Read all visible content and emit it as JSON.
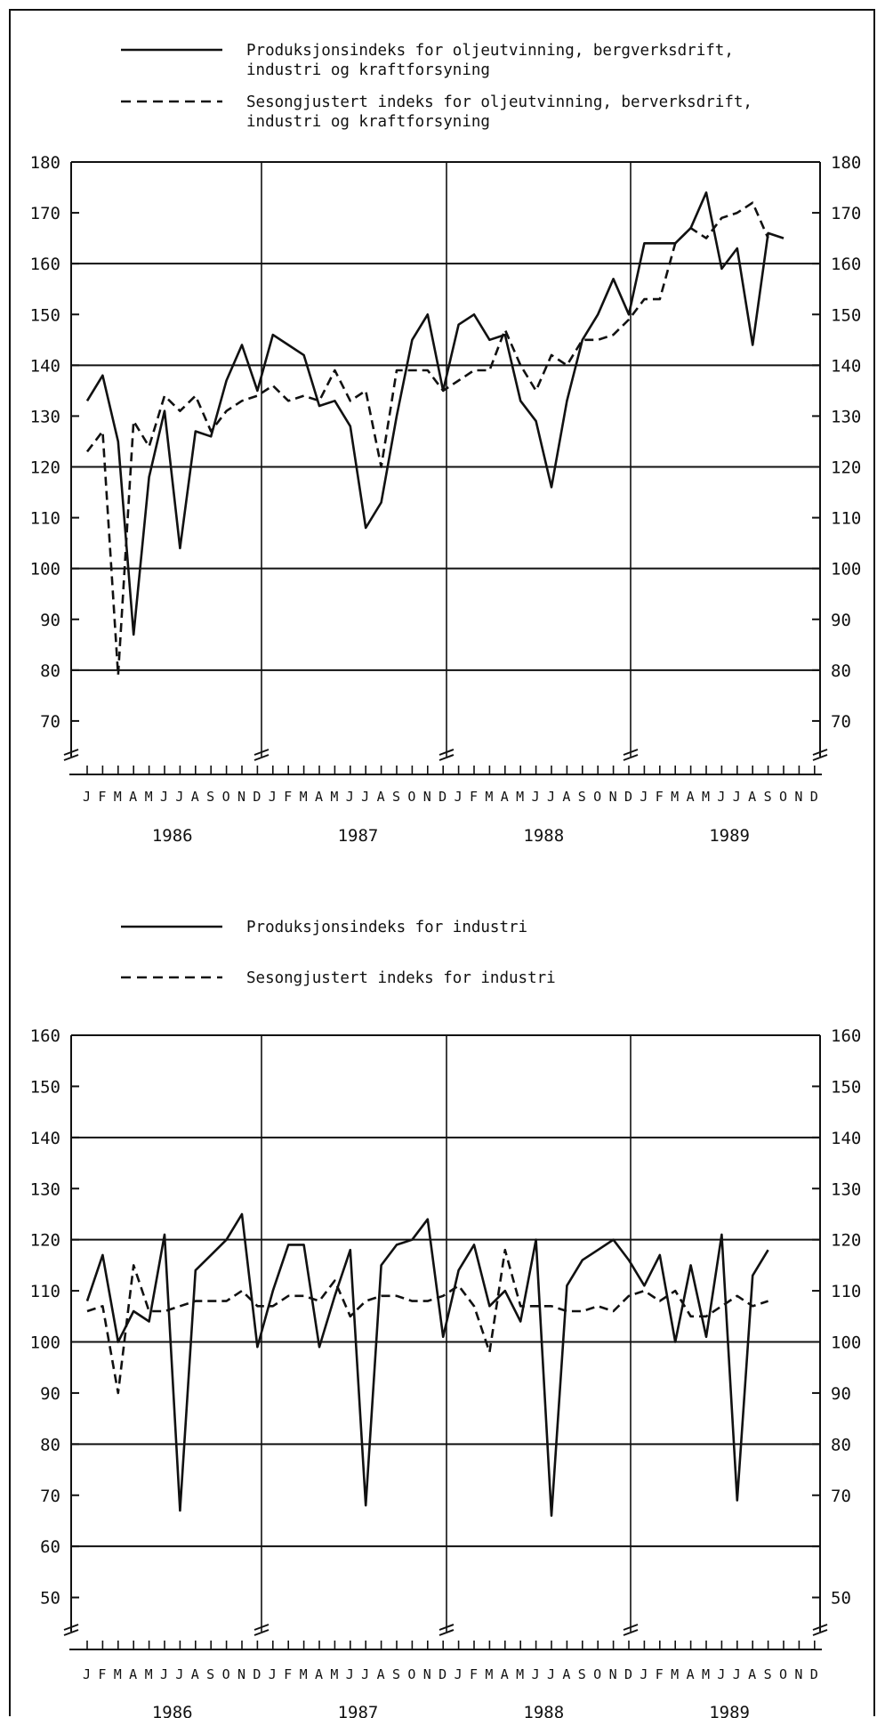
{
  "chart_data": [
    {
      "type": "line",
      "legend": {
        "placement": "top",
        "entries": [
          {
            "style": "solid",
            "lines": [
              "Produksjonsindeks for oljeutvinning, bergverksdrift,",
              "industri og kraftforsyning"
            ]
          },
          {
            "style": "dashed",
            "lines": [
              "Sesongjustert indeks for oljeutvinning, berverksdrift,",
              "industri og kraftforsyning"
            ]
          }
        ]
      },
      "ylim": [
        60,
        180
      ],
      "yticks": [
        70,
        80,
        90,
        100,
        110,
        120,
        130,
        140,
        150,
        160,
        170,
        180
      ],
      "gridlines": [
        80,
        100,
        120,
        140,
        160
      ],
      "grid": true,
      "months": [
        "J",
        "F",
        "M",
        "A",
        "M",
        "J",
        "J",
        "A",
        "S",
        "O",
        "N",
        "D"
      ],
      "years": [
        "1986",
        "1987",
        "1988",
        "1989"
      ],
      "series": [
        {
          "style": "solid",
          "values": [
            133,
            138,
            125,
            87,
            118,
            131,
            104,
            127,
            126,
            137,
            144,
            135,
            146,
            144,
            142,
            132,
            133,
            128,
            108,
            113,
            130,
            145,
            150,
            135,
            148,
            150,
            145,
            146,
            133,
            129,
            116,
            133,
            145,
            150,
            157,
            150,
            164,
            164,
            164,
            167,
            174,
            159,
            163,
            144,
            166,
            165
          ]
        },
        {
          "style": "dashed",
          "values": [
            123,
            127,
            79,
            129,
            124,
            134,
            131,
            134,
            127,
            131,
            133,
            134,
            136,
            133,
            134,
            133,
            139,
            133,
            135,
            120,
            139,
            139,
            139,
            135,
            137,
            139,
            139,
            147,
            140,
            135,
            142,
            140,
            145,
            145,
            146,
            149,
            153,
            153,
            164,
            167,
            165,
            169,
            170,
            172,
            165
          ]
        }
      ]
    },
    {
      "type": "line",
      "legend": {
        "placement": "top",
        "entries": [
          {
            "style": "solid",
            "lines": [
              "Produksjonsindeks for industri"
            ]
          },
          {
            "style": "dashed",
            "lines": [
              "Sesongjustert indeks for industri"
            ]
          }
        ]
      },
      "ylim": [
        40,
        160
      ],
      "yticks_left": [
        50,
        60,
        70,
        80,
        90,
        100,
        110,
        120,
        130,
        140,
        150,
        160
      ],
      "yticks_right": [
        50,
        60,
        70,
        80,
        90,
        100,
        110,
        120,
        130,
        140,
        150,
        160
      ],
      "yticks_right_labels": [
        50,
        70,
        80,
        90,
        100,
        110,
        120,
        130,
        140,
        150,
        160
      ],
      "gridlines": [
        60,
        80,
        100,
        120,
        140
      ],
      "grid": true,
      "months": [
        "J",
        "F",
        "M",
        "A",
        "M",
        "J",
        "J",
        "A",
        "S",
        "O",
        "N",
        "D"
      ],
      "years": [
        "1986",
        "1987",
        "1988",
        "1989"
      ],
      "series": [
        {
          "style": "solid",
          "values": [
            108,
            117,
            100,
            106,
            104,
            121,
            67,
            114,
            117,
            120,
            125,
            99,
            110,
            119,
            119,
            99,
            109,
            118,
            68,
            115,
            119,
            120,
            124,
            101,
            114,
            119,
            107,
            110,
            104,
            120,
            66,
            111,
            116,
            118,
            120,
            116,
            111,
            117,
            100,
            115,
            101,
            121,
            69,
            113,
            118
          ]
        },
        {
          "style": "dashed",
          "values": [
            106,
            107,
            90,
            115,
            106,
            106,
            107,
            108,
            108,
            108,
            110,
            107,
            107,
            109,
            109,
            108,
            112,
            105,
            108,
            109,
            109,
            108,
            108,
            109,
            111,
            107,
            98,
            118,
            107,
            107,
            107,
            106,
            106,
            107,
            106,
            109,
            110,
            108,
            110,
            105,
            105,
            107,
            109,
            107,
            108
          ]
        }
      ]
    }
  ]
}
